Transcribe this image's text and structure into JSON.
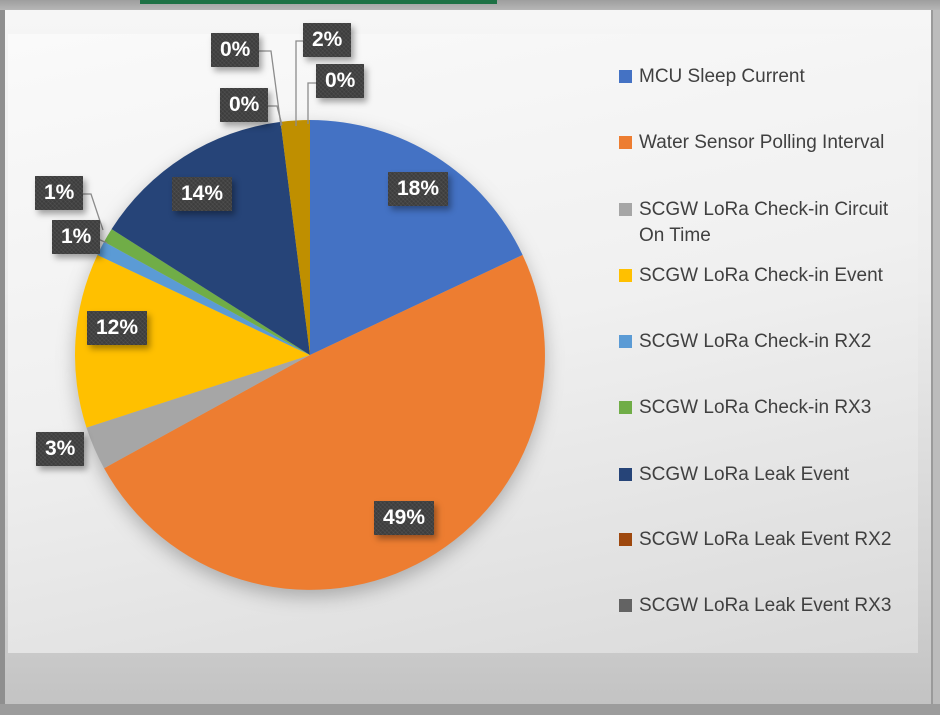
{
  "window": {
    "top_accent_color": "#1E7145"
  },
  "chart_data": {
    "type": "pie",
    "title": "",
    "legend_position": "right",
    "start_angle_deg": 0,
    "direction": "clockwise",
    "slices": [
      {
        "legend": "MCU Sleep Current",
        "label": "18%",
        "value": 18,
        "color": "#4472C4"
      },
      {
        "legend": "Water Sensor Polling Interval",
        "label": "49%",
        "value": 49,
        "color": "#ED7D31"
      },
      {
        "legend": "SCGW LoRa Check-in Circuit On Time",
        "label": "3%",
        "value": 3,
        "color": "#A6A6A6"
      },
      {
        "legend": "SCGW LoRa Check-in Event",
        "label": "12%",
        "value": 12,
        "color": "#FFC000"
      },
      {
        "legend": "SCGW LoRa Check-in RX2",
        "label": "1%",
        "value": 1,
        "color": "#5B9BD5"
      },
      {
        "legend": "SCGW LoRa Check-in RX3",
        "label": "1%",
        "value": 1,
        "color": "#70AD47"
      },
      {
        "legend": "SCGW LoRa Leak Event",
        "label": "14%",
        "value": 14,
        "color": "#264478"
      },
      {
        "legend": "SCGW LoRa Leak Event RX2",
        "label": "0%",
        "value": 0,
        "color": "#9E480E"
      },
      {
        "legend": "SCGW LoRa Leak Event RX3",
        "label": "0%",
        "value": 0,
        "color": "#636363"
      },
      {
        "legend": "",
        "label": "2%",
        "value": 2,
        "color": "#BF8F00"
      },
      {
        "legend": "",
        "label": "0%",
        "value": 0,
        "color": ""
      }
    ]
  }
}
